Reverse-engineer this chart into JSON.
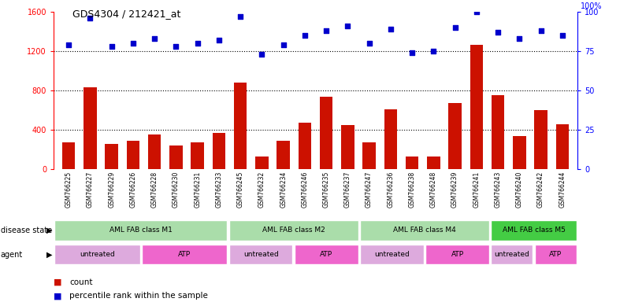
{
  "title": "GDS4304 / 212421_at",
  "samples": [
    "GSM766225",
    "GSM766227",
    "GSM766229",
    "GSM766226",
    "GSM766228",
    "GSM766230",
    "GSM766231",
    "GSM766233",
    "GSM766245",
    "GSM766232",
    "GSM766234",
    "GSM766246",
    "GSM766235",
    "GSM766237",
    "GSM766247",
    "GSM766236",
    "GSM766238",
    "GSM766248",
    "GSM766239",
    "GSM766241",
    "GSM766243",
    "GSM766240",
    "GSM766242",
    "GSM766244"
  ],
  "counts": [
    270,
    830,
    260,
    290,
    350,
    240,
    270,
    370,
    880,
    130,
    290,
    470,
    740,
    450,
    270,
    610,
    130,
    130,
    670,
    1270,
    750,
    340,
    600,
    460
  ],
  "percentiles": [
    79,
    96,
    78,
    80,
    83,
    78,
    80,
    82,
    97,
    73,
    79,
    85,
    88,
    91,
    80,
    89,
    74,
    75,
    90,
    100,
    87,
    83,
    88,
    85
  ],
  "disease_state_groups": [
    {
      "label": "AML FAB class M1",
      "start": 0,
      "end": 7,
      "color": "#aaddaa"
    },
    {
      "label": "AML FAB class M2",
      "start": 8,
      "end": 13,
      "color": "#aaddaa"
    },
    {
      "label": "AML FAB class M4",
      "start": 14,
      "end": 19,
      "color": "#aaddaa"
    },
    {
      "label": "AML FAB class M5",
      "start": 20,
      "end": 23,
      "color": "#44cc44"
    }
  ],
  "agent_groups": [
    {
      "label": "untreated",
      "start": 0,
      "end": 3,
      "color": "#ddaadd"
    },
    {
      "label": "ATP",
      "start": 4,
      "end": 7,
      "color": "#ee66cc"
    },
    {
      "label": "untreated",
      "start": 8,
      "end": 10,
      "color": "#ddaadd"
    },
    {
      "label": "ATP",
      "start": 11,
      "end": 13,
      "color": "#ee66cc"
    },
    {
      "label": "untreated",
      "start": 14,
      "end": 16,
      "color": "#ddaadd"
    },
    {
      "label": "ATP",
      "start": 17,
      "end": 19,
      "color": "#ee66cc"
    },
    {
      "label": "untreated",
      "start": 20,
      "end": 21,
      "color": "#ddaadd"
    },
    {
      "label": "ATP",
      "start": 22,
      "end": 23,
      "color": "#ee66cc"
    }
  ],
  "bar_color": "#CC1100",
  "dot_color": "#0000CC",
  "ylim_left": [
    0,
    1600
  ],
  "ylim_right": [
    0,
    100
  ],
  "yticks_left": [
    0,
    400,
    800,
    1200,
    1600
  ],
  "yticks_right": [
    0,
    25,
    50,
    75,
    100
  ],
  "hlines": [
    400,
    800,
    1200
  ],
  "disease_state_label": "disease state",
  "agent_label": "agent",
  "legend_count": "count",
  "legend_percentile": "percentile rank within the sample"
}
